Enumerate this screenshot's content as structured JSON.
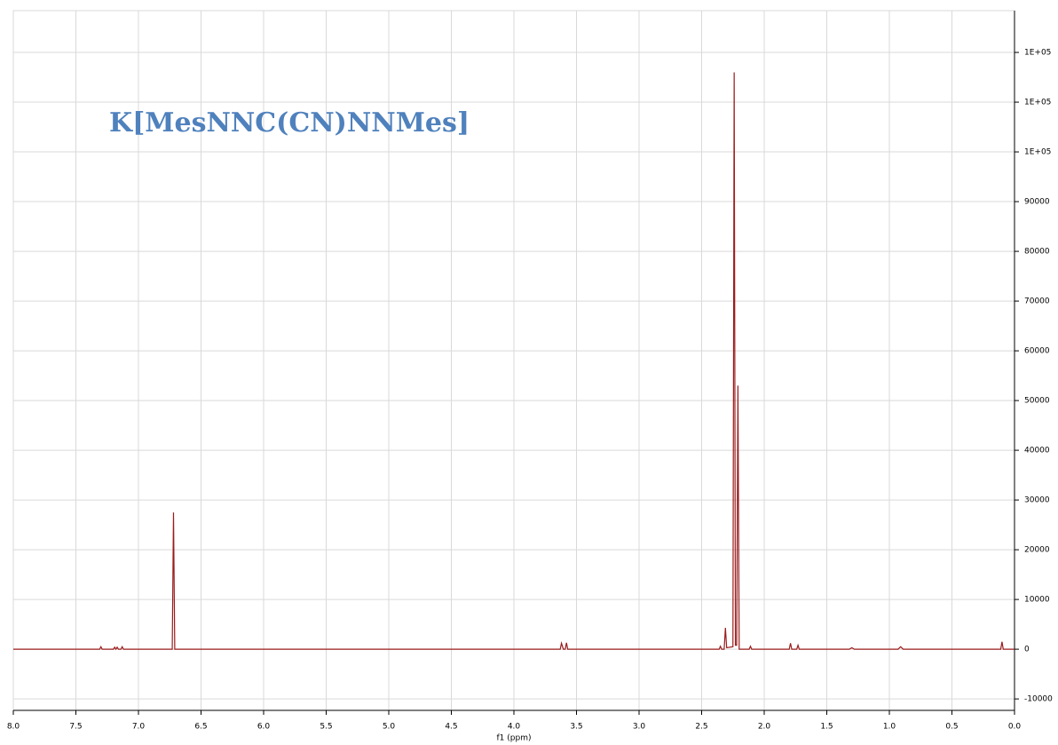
{
  "chart_data": {
    "type": "line",
    "annotation": "K[MesNNC(CN)NNMes]",
    "x_label": "f1 (ppm)",
    "color": "#9b1c1c",
    "grid": true,
    "x_reversed": true,
    "y_axis_side": "right",
    "x": [
      8.0,
      7.31,
      7.3,
      7.29,
      7.2,
      7.19,
      7.18,
      7.17,
      7.16,
      7.14,
      7.13,
      7.12,
      6.73,
      6.72,
      6.71,
      3.63,
      3.62,
      3.605,
      3.59,
      3.58,
      3.57,
      2.36,
      2.35,
      2.34,
      2.32,
      2.31,
      2.3,
      2.25,
      2.24,
      2.23,
      2.22,
      2.21,
      2.2,
      2.12,
      2.11,
      2.1,
      1.8,
      1.79,
      1.78,
      1.74,
      1.73,
      1.72,
      1.32,
      1.3,
      1.28,
      0.93,
      0.91,
      0.89,
      0.11,
      0.1,
      0.09,
      0.0
    ],
    "values": [
      0,
      0,
      500,
      0,
      0,
      400,
      0,
      400,
      0,
      0,
      500,
      0,
      0,
      27500,
      0,
      0,
      1200,
      0,
      0,
      1300,
      0,
      0,
      600,
      0,
      0,
      4300,
      300,
      500,
      116000,
      800,
      800,
      53000,
      0,
      0,
      600,
      0,
      0,
      1200,
      0,
      0,
      800,
      0,
      0,
      300,
      0,
      0,
      500,
      0,
      0,
      1500,
      0,
      0
    ],
    "xlim": [
      8.0,
      0.0
    ],
    "xticks": [
      {
        "value": 8,
        "label": "8.0"
      },
      7.5,
      {
        "value": 7,
        "label": "7.0"
      },
      6.5,
      {
        "value": 6,
        "label": "6.0"
      },
      5.5,
      {
        "value": 5,
        "label": "5.0"
      },
      4.5,
      {
        "value": 4,
        "label": "4.0"
      },
      3.5,
      {
        "value": 3,
        "label": "3.0"
      },
      2.5,
      {
        "value": 2,
        "label": "2.0"
      },
      1.5,
      {
        "value": 1,
        "label": "1.0"
      },
      0.5,
      {
        "value": 0,
        "label": "0.0"
      }
    ],
    "ylim": [
      -12300,
      128400
    ],
    "yticks": [
      -10000,
      0,
      10000,
      20000,
      30000,
      40000,
      50000,
      60000,
      70000,
      80000,
      90000,
      {
        "value": 100000,
        "label": "1E+05"
      },
      {
        "value": 110000,
        "label": "1E+05"
      },
      {
        "value": 120000,
        "label": "1E+05"
      }
    ]
  }
}
